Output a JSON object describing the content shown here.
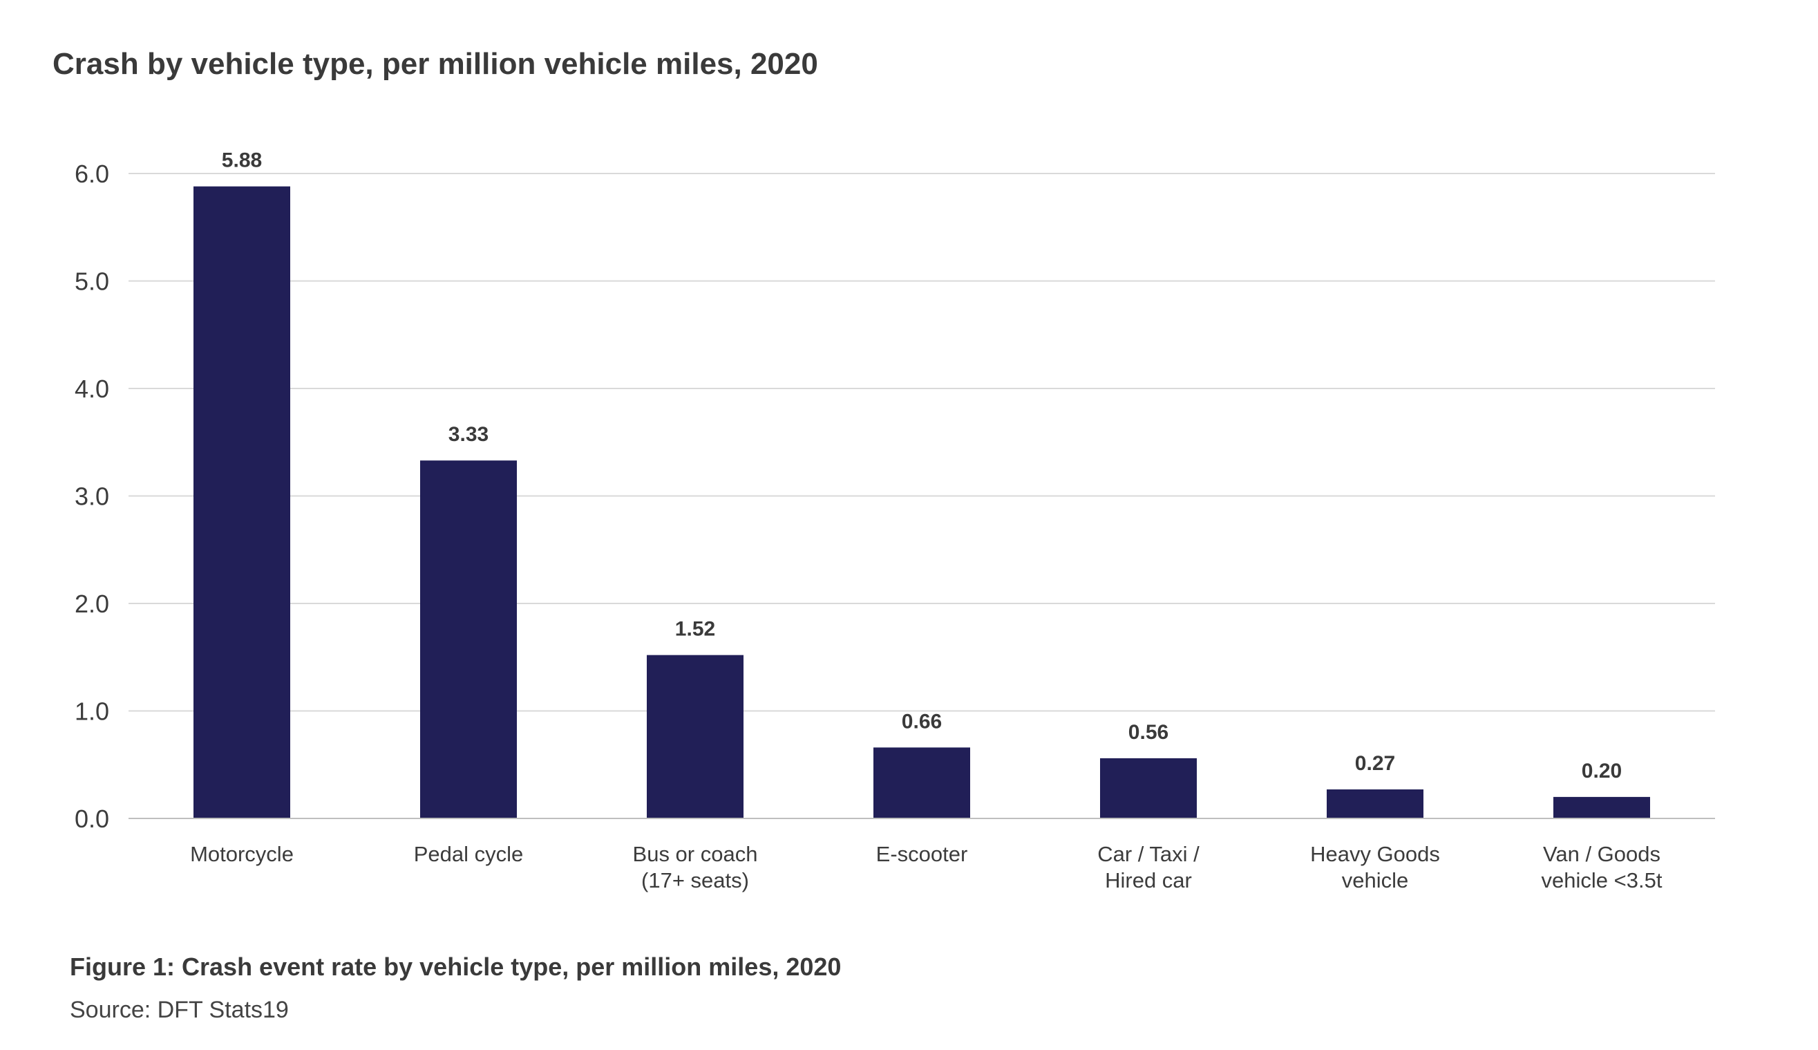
{
  "title": "Crash by vehicle type, per million vehicle miles, 2020",
  "caption": "Figure 1: Crash event rate by vehicle type, per million miles, 2020",
  "source": "Source: DFT Stats19",
  "colors": {
    "bar": "#211f57",
    "grid": "#d9d9d9",
    "axis": "#bfbfbf"
  },
  "chart_data": {
    "type": "bar",
    "title": "Crash by vehicle type, per million vehicle miles, 2020",
    "xlabel": "",
    "ylabel": "",
    "ylim": [
      0,
      6
    ],
    "yticks": [
      "0.0",
      "1.0",
      "2.0",
      "3.0",
      "4.0",
      "5.0",
      "6.0"
    ],
    "grid": true,
    "categories": [
      [
        "Motorcycle"
      ],
      [
        "Pedal cycle"
      ],
      [
        "Bus or coach",
        "(17+ seats)"
      ],
      [
        "E-scooter"
      ],
      [
        "Car / Taxi /",
        "Hired car"
      ],
      [
        "Heavy Goods",
        "vehicle"
      ],
      [
        "Van / Goods",
        "vehicle <3.5t"
      ]
    ],
    "values": [
      5.88,
      3.33,
      1.52,
      0.66,
      0.56,
      0.27,
      0.2
    ],
    "value_labels": [
      "5.88",
      "3.33",
      "1.52",
      "0.66",
      "0.56",
      "0.27",
      "0.20"
    ]
  }
}
